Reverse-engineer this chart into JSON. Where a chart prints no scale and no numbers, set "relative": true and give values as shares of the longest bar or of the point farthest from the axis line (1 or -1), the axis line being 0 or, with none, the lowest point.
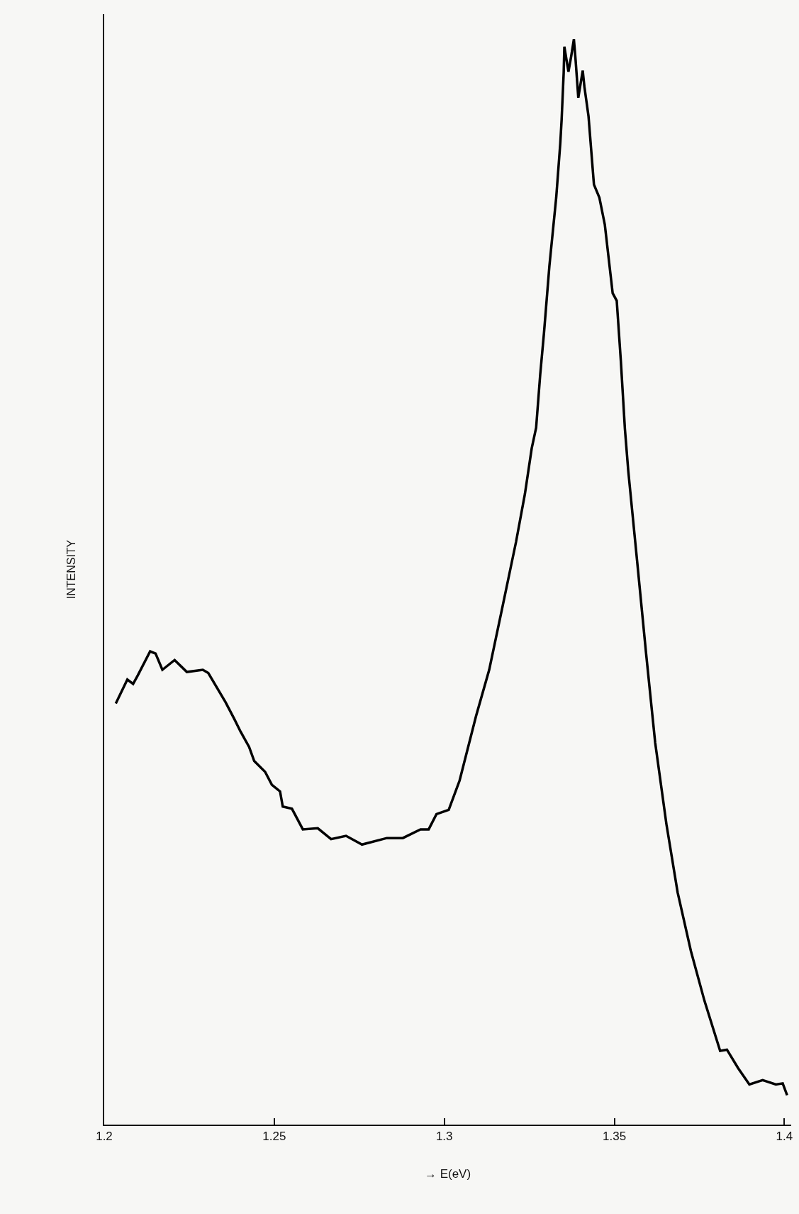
{
  "chart_data": {
    "type": "line",
    "relative": true,
    "xlabel": "→ E(eV)",
    "ylabel": "INTENSITY",
    "xlim": [
      1.2,
      1.402
    ],
    "xticks": [
      1.2,
      1.25,
      1.3,
      1.35,
      1.4
    ],
    "grid": false,
    "legend": false,
    "marker": "none",
    "line_style": "solid",
    "tick_labels": "x",
    "series": [
      {
        "color": "#000000",
        "x": [
          1.2034,
          1.2068,
          1.2085,
          1.2099,
          1.2135,
          1.2151,
          1.2171,
          1.2207,
          1.2243,
          1.229,
          1.2306,
          1.2357,
          1.2382,
          1.2401,
          1.2426,
          1.2441,
          1.2473,
          1.2493,
          1.2517,
          1.2525,
          1.2552,
          1.2584,
          1.2628,
          1.2667,
          1.2711,
          1.2758,
          1.2831,
          1.2878,
          1.293,
          1.2954,
          1.2977,
          1.3013,
          1.3045,
          1.3093,
          1.3132,
          1.3171,
          1.3211,
          1.3237,
          1.3257,
          1.327,
          1.3282,
          1.3293,
          1.3309,
          1.3329,
          1.3341,
          1.3345,
          1.3351,
          1.3353,
          1.3365,
          1.3373,
          1.3381,
          1.3386,
          1.3394,
          1.3407,
          1.3412,
          1.3424,
          1.344,
          1.3456,
          1.3472,
          1.3495,
          1.3507,
          1.3519,
          1.3531,
          1.3541,
          1.3567,
          1.3593,
          1.362,
          1.3653,
          1.3686,
          1.3725,
          1.3765,
          1.3811,
          1.3831,
          1.3864,
          1.3897,
          1.3936,
          1.3975,
          1.3995,
          1.4008
        ],
        "values": [
          0.388,
          0.41,
          0.406,
          0.414,
          0.436,
          0.434,
          0.419,
          0.428,
          0.417,
          0.419,
          0.416,
          0.389,
          0.374,
          0.362,
          0.348,
          0.335,
          0.325,
          0.313,
          0.307,
          0.293,
          0.291,
          0.272,
          0.273,
          0.263,
          0.266,
          0.258,
          0.264,
          0.264,
          0.272,
          0.272,
          0.286,
          0.29,
          0.317,
          0.376,
          0.419,
          0.477,
          0.537,
          0.581,
          0.623,
          0.642,
          0.691,
          0.729,
          0.791,
          0.854,
          0.904,
          0.926,
          0.969,
          0.993,
          0.97,
          0.984,
          1,
          0.981,
          0.946,
          0.971,
          0.956,
          0.929,
          0.866,
          0.854,
          0.829,
          0.766,
          0.759,
          0.704,
          0.641,
          0.602,
          0.519,
          0.435,
          0.352,
          0.277,
          0.214,
          0.16,
          0.114,
          0.068,
          0.069,
          0.052,
          0.037,
          0.041,
          0.037,
          0.038,
          0.027
        ]
      }
    ]
  }
}
